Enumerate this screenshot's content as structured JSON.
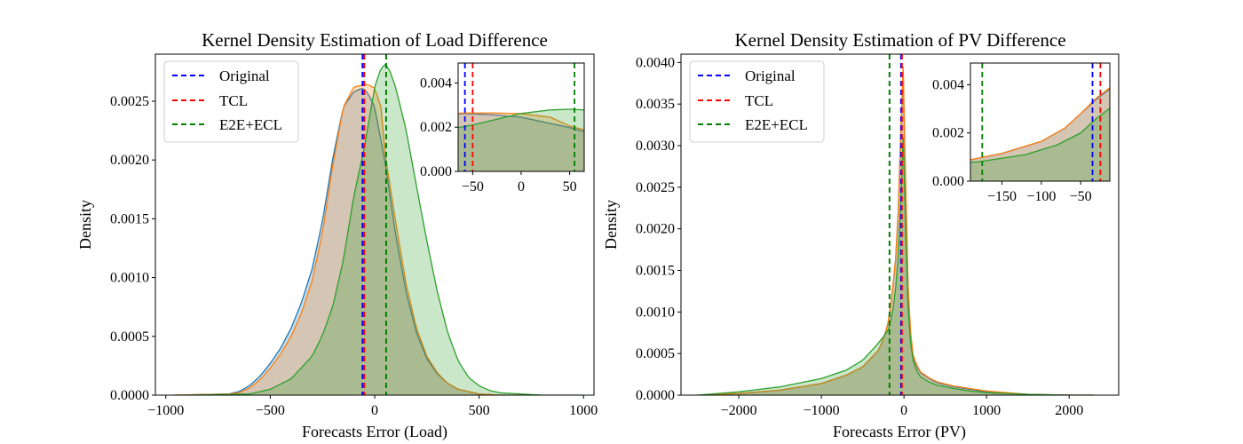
{
  "colors": {
    "original": "#1f77b4",
    "tcl": "#ff7f0e",
    "e2e": "#2ca02c",
    "vline_original": "#0000ff",
    "vline_tcl": "#ff0000",
    "vline_e2e": "#008000"
  },
  "legend_entries": [
    "Original",
    "TCL",
    "E2E+ECL"
  ],
  "chart_data": [
    {
      "type": "area",
      "title": "Kernel Density Estimation of Load Difference",
      "xlabel": "Forecasts Error (Load)",
      "ylabel": "Density",
      "xlim": [
        -1050,
        1050
      ],
      "ylim": [
        0,
        0.0029
      ],
      "xticks": [
        -1000,
        -500,
        0,
        500,
        1000
      ],
      "xtick_labels": [
        "−1000",
        "−500",
        "0",
        "500",
        "1000"
      ],
      "yticks": [
        0,
        0.0005,
        0.001,
        0.0015,
        0.002,
        0.0025
      ],
      "ytick_labels": [
        "0.0000",
        "0.0005",
        "0.0010",
        "0.0015",
        "0.0020",
        "0.0025"
      ],
      "legend_position": "upper-left",
      "series": [
        {
          "name": "Original",
          "x": [
            -960,
            -700,
            -650,
            -600,
            -550,
            -500,
            -450,
            -400,
            -350,
            -300,
            -250,
            -200,
            -150,
            -100,
            -60,
            -50,
            -30,
            0,
            50,
            100,
            150,
            200,
            250,
            300,
            350,
            400,
            450,
            500,
            600,
            700,
            800
          ],
          "values": [
            0,
            1e-05,
            3e-05,
            8e-05,
            0.00016,
            0.00027,
            0.0004,
            0.00057,
            0.00079,
            0.00107,
            0.00148,
            0.00202,
            0.00245,
            0.00258,
            0.00261,
            0.0026,
            0.00256,
            0.00245,
            0.00198,
            0.00137,
            0.00088,
            0.00053,
            0.00031,
            0.00018,
            0.0001,
            5e-05,
            3e-05,
            1e-05,
            0,
            0,
            0
          ]
        },
        {
          "name": "TCL",
          "x": [
            -960,
            -700,
            -650,
            -600,
            -550,
            -500,
            -450,
            -400,
            -350,
            -300,
            -250,
            -200,
            -150,
            -100,
            -50,
            -30,
            0,
            30,
            50,
            100,
            150,
            200,
            250,
            300,
            350,
            400,
            450,
            500,
            600,
            700,
            800
          ],
          "values": [
            0,
            1e-05,
            2e-05,
            6e-05,
            0.00013,
            0.00023,
            0.00035,
            0.0005,
            0.0007,
            0.00097,
            0.00138,
            0.00196,
            0.00245,
            0.00262,
            0.00264,
            0.00264,
            0.00261,
            0.00245,
            0.00205,
            0.00148,
            0.00095,
            0.00057,
            0.00033,
            0.00019,
            0.0001,
            5e-05,
            3e-05,
            1e-05,
            0,
            0,
            0
          ]
        },
        {
          "name": "E2E+ECL",
          "x": [
            -900,
            -600,
            -500,
            -400,
            -300,
            -250,
            -200,
            -150,
            -100,
            -50,
            0,
            30,
            50,
            70,
            100,
            150,
            200,
            250,
            300,
            350,
            400,
            450,
            500,
            550,
            600,
            700,
            800,
            900,
            1000
          ],
          "values": [
            0,
            1e-05,
            5e-05,
            0.00014,
            0.00033,
            0.00051,
            0.00076,
            0.00115,
            0.00169,
            0.0021,
            0.00262,
            0.00278,
            0.00281,
            0.00277,
            0.00262,
            0.00226,
            0.00178,
            0.00131,
            0.00088,
            0.00053,
            0.00029,
            0.00015,
            8e-05,
            4e-05,
            2e-05,
            1e-05,
            0,
            0,
            0
          ]
        }
      ],
      "vlines": [
        {
          "series": "E2E+ECL",
          "x": 55
        },
        {
          "series": "Original",
          "x": -58
        },
        {
          "series": "TCL",
          "x": -50
        }
      ],
      "inset": {
        "xlim": [
          -65,
          65
        ],
        "ylim": [
          0,
          0.0049
        ],
        "xticks": [
          -50,
          0,
          50
        ],
        "xtick_labels": [
          "−50",
          "0",
          "50"
        ],
        "yticks": [
          0,
          0.002,
          0.004
        ],
        "ytick_labels": [
          "0.000",
          "0.002",
          "0.004"
        ]
      }
    },
    {
      "type": "area",
      "title": "Kernel Density Estimation of PV Difference",
      "xlabel": "Forecasts Error (PV)",
      "ylabel": "Density",
      "xlim": [
        -2700,
        2600
      ],
      "ylim": [
        0,
        0.0041
      ],
      "xticks": [
        -2000,
        -1000,
        0,
        1000,
        2000
      ],
      "xtick_labels": [
        "−2000",
        "−1000",
        "0",
        "1000",
        "2000"
      ],
      "yticks": [
        0,
        0.0005,
        0.001,
        0.0015,
        0.002,
        0.0025,
        0.003,
        0.0035,
        0.004
      ],
      "ytick_labels": [
        "0.0000",
        "0.0005",
        "0.0010",
        "0.0015",
        "0.0020",
        "0.0025",
        "0.0030",
        "0.0035",
        "0.0040"
      ],
      "legend_position": "upper-left",
      "series": [
        {
          "name": "Original",
          "x": [
            -2500,
            -2000,
            -1500,
            -1000,
            -700,
            -500,
            -300,
            -200,
            -150,
            -100,
            -70,
            -50,
            -30,
            -10,
            0,
            10,
            20,
            40,
            60,
            100,
            150,
            200,
            300,
            400,
            600,
            800,
            1000,
            1500,
            2000,
            2300
          ],
          "values": [
            0,
            2e-05,
            6e-05,
            0.00014,
            0.00024,
            0.00034,
            0.00055,
            0.00082,
            0.00115,
            0.00165,
            0.0022,
            0.0028,
            0.0034,
            0.0039,
            0.00385,
            0.0032,
            0.0025,
            0.0016,
            0.00095,
            0.0005,
            0.00035,
            0.00027,
            0.0002,
            0.00015,
            0.0001,
            7e-05,
            4e-05,
            1e-05,
            0,
            0
          ]
        },
        {
          "name": "TCL",
          "x": [
            -2500,
            -2000,
            -1500,
            -1000,
            -700,
            -500,
            -300,
            -200,
            -150,
            -100,
            -70,
            -50,
            -30,
            -10,
            0,
            10,
            20,
            40,
            60,
            100,
            150,
            200,
            300,
            400,
            600,
            800,
            1000,
            1500,
            2000,
            2300
          ],
          "values": [
            0,
            2e-05,
            6e-05,
            0.00014,
            0.00024,
            0.00034,
            0.00055,
            0.00082,
            0.00115,
            0.00165,
            0.0022,
            0.0028,
            0.00345,
            0.00395,
            0.00392,
            0.0033,
            0.0026,
            0.00165,
            0.001,
            0.00052,
            0.00037,
            0.00028,
            0.00021,
            0.00016,
            0.00011,
            8e-05,
            5e-05,
            1e-05,
            0,
            0
          ]
        },
        {
          "name": "E2E+ECL",
          "x": [
            -2500,
            -2000,
            -1500,
            -1000,
            -700,
            -500,
            -350,
            -250,
            -180,
            -120,
            -80,
            -50,
            -30,
            -10,
            0,
            10,
            20,
            40,
            60,
            100,
            150,
            200,
            300,
            400,
            600,
            800,
            1000,
            1500,
            2000,
            2300
          ],
          "values": [
            0,
            4e-05,
            0.0001,
            0.0002,
            0.0003,
            0.00042,
            0.00058,
            0.0007,
            0.0008,
            0.0011,
            0.0015,
            0.002,
            0.0026,
            0.0031,
            0.0032,
            0.0027,
            0.002,
            0.0013,
            0.0008,
            0.00045,
            0.0003,
            0.00022,
            0.00016,
            0.00012,
            8e-05,
            5e-05,
            3e-05,
            1e-05,
            0,
            0
          ]
        }
      ],
      "vlines": [
        {
          "series": "E2E+ECL",
          "x": -175
        },
        {
          "series": "Original",
          "x": -35
        },
        {
          "series": "TCL",
          "x": -25
        }
      ],
      "inset": {
        "xlim": [
          -190,
          -13
        ],
        "ylim": [
          0,
          0.0049
        ],
        "xticks": [
          -150,
          -100,
          -50
        ],
        "xtick_labels": [
          "−150",
          "−100",
          "−50"
        ],
        "yticks": [
          0,
          0.002,
          0.004
        ],
        "ytick_labels": [
          "0.000",
          "0.002",
          "0.004"
        ]
      }
    }
  ]
}
